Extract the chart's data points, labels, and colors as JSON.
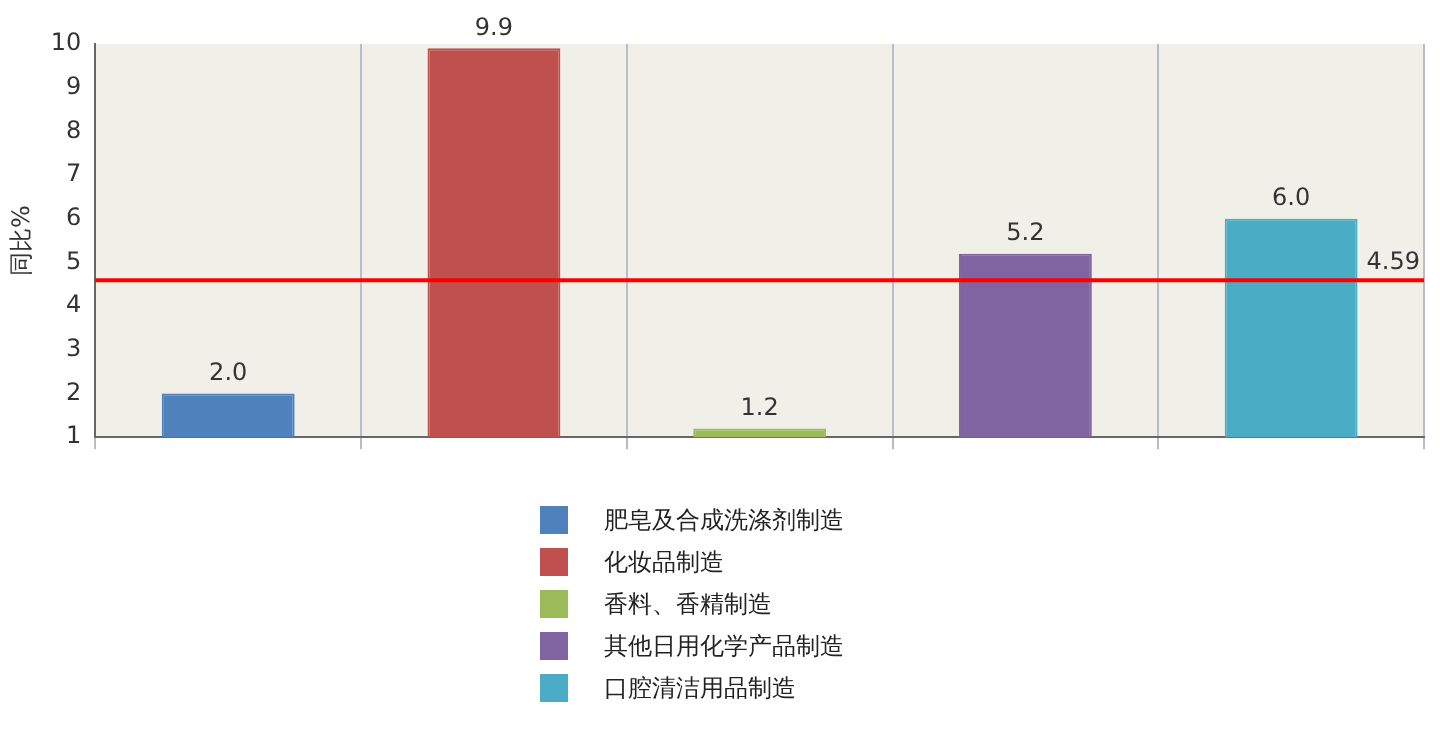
{
  "chart_data": {
    "type": "bar",
    "ylabel": "同比%",
    "categories": [
      null,
      null,
      null,
      null,
      null
    ],
    "series": [
      {
        "name": "肥皂及合成洗涤剂制造",
        "color": "#4f81bd",
        "values": [
          2.0,
          null,
          null,
          null,
          null
        ],
        "value_labels": [
          "2.0",
          null,
          null,
          null,
          null
        ]
      },
      {
        "name": "化妆品制造",
        "color": "#c0504d",
        "values": [
          null,
          9.9,
          null,
          null,
          null
        ],
        "value_labels": [
          null,
          "9.9",
          null,
          null,
          null
        ]
      },
      {
        "name": "香料、香精制造",
        "color": "#9bbb59",
        "values": [
          null,
          null,
          1.2,
          null,
          null
        ],
        "value_labels": [
          null,
          null,
          "1.2",
          null,
          null
        ]
      },
      {
        "name": "其他日用化学产品制造",
        "color": "#8064a2",
        "values": [
          null,
          null,
          null,
          5.2,
          null
        ],
        "value_labels": [
          null,
          null,
          null,
          "5.2",
          null
        ]
      },
      {
        "name": "口腔清洁用品制造",
        "color": "#4bacc6",
        "values": [
          null,
          null,
          null,
          null,
          6.0
        ],
        "value_labels": [
          null,
          null,
          null,
          null,
          "6.0"
        ]
      }
    ],
    "ylim": [
      1,
      10
    ],
    "yticks": [
      1,
      2,
      3,
      4,
      5,
      6,
      7,
      8,
      9,
      10
    ],
    "ref_lines": [
      {
        "axis": "y",
        "value": 4.59,
        "label": "4.59",
        "color": "#ff0000"
      }
    ],
    "grid": "x",
    "legend": "bottom"
  }
}
